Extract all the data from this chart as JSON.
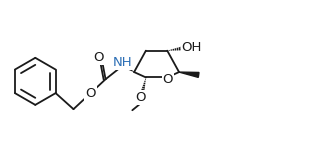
{
  "figsize": [
    3.33,
    1.42
  ],
  "dpi": 100,
  "lc": "#1a1a1a",
  "hc": "#2c6eb5",
  "bg": "#ffffff",
  "lw": 1.3,
  "xlim": [
    0,
    10.0
  ],
  "ylim": [
    0,
    4.27
  ]
}
